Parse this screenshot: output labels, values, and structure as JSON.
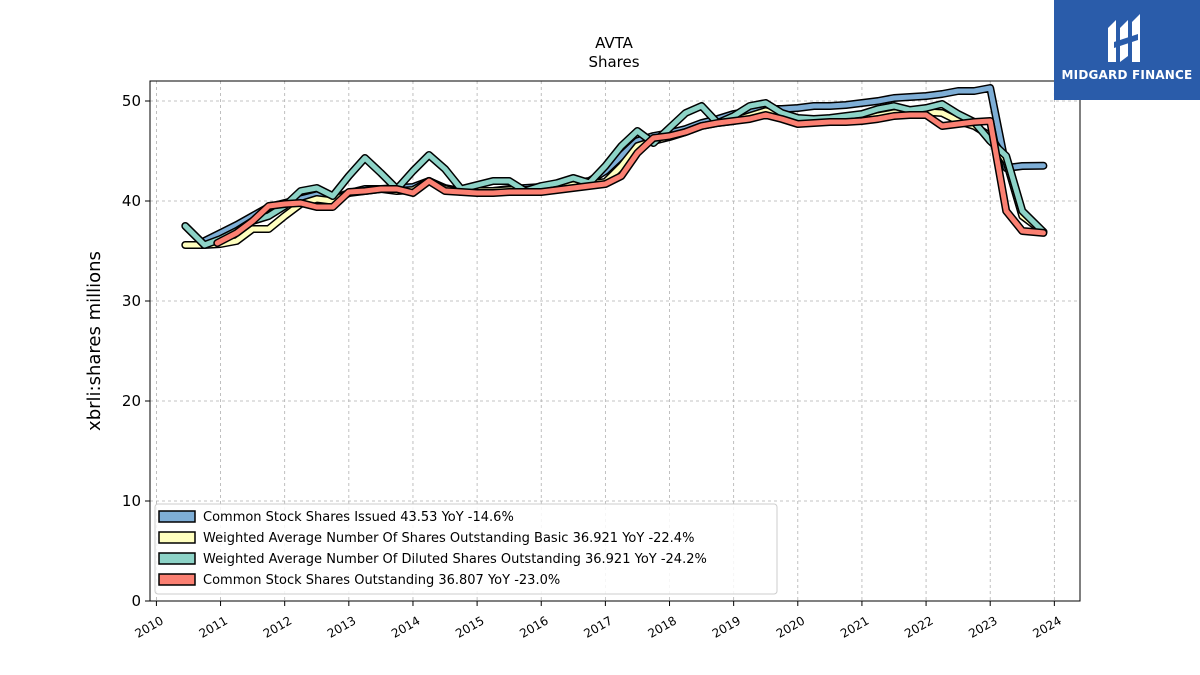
{
  "chart_data": {
    "type": "line",
    "title": "AVTA",
    "subtitle": "Shares",
    "ylabel": "xbrli:shares millions",
    "xlabel": "",
    "xlim": [
      2009.9,
      2024.4
    ],
    "ylim": [
      0,
      52
    ],
    "x_ticks": [
      "2010",
      "2011",
      "2012",
      "2013",
      "2014",
      "2015",
      "2016",
      "2017",
      "2018",
      "2019",
      "2020",
      "2021",
      "2022",
      "2023",
      "2024"
    ],
    "y_ticks": [
      "0",
      "10",
      "20",
      "30",
      "40",
      "50"
    ],
    "grid": true,
    "legend_position": "lower-left",
    "series": [
      {
        "name": "Common Stock Shares Issued",
        "legend_label": "Common Stock Shares Issued  43.53 YoY -14.6%",
        "color": "#7eaed6",
        "x": [
          2010.75,
          2011.0,
          2011.25,
          2011.5,
          2011.75,
          2012.0,
          2012.25,
          2012.5,
          2012.75,
          2013.0,
          2013.25,
          2013.5,
          2013.75,
          2014.0,
          2014.25,
          2014.5,
          2014.75,
          2015.0,
          2015.25,
          2015.5,
          2015.75,
          2016.0,
          2016.25,
          2016.5,
          2016.75,
          2017.0,
          2017.25,
          2017.5,
          2017.75,
          2018.0,
          2018.25,
          2018.5,
          2018.75,
          2019.0,
          2019.25,
          2019.5,
          2019.75,
          2020.0,
          2020.25,
          2020.5,
          2020.75,
          2021.0,
          2021.25,
          2021.5,
          2021.75,
          2022.0,
          2022.25,
          2022.5,
          2022.75,
          2023.0,
          2023.25,
          2023.5,
          2023.83
        ],
        "y": [
          36.0,
          36.8,
          37.6,
          38.5,
          39.4,
          39.8,
          40.2,
          40.6,
          40.2,
          40.8,
          41.2,
          41.2,
          41.3,
          41.4,
          42.0,
          41.3,
          41.0,
          41.0,
          41.0,
          41.2,
          41.3,
          41.4,
          41.6,
          41.8,
          42.0,
          43.0,
          44.5,
          46.0,
          46.5,
          46.8,
          47.2,
          47.8,
          48.2,
          48.7,
          49.0,
          49.2,
          49.2,
          49.3,
          49.5,
          49.5,
          49.6,
          49.8,
          50.0,
          50.3,
          50.4,
          50.5,
          50.7,
          51.0,
          51.0,
          51.3,
          43.3,
          43.5,
          43.53
        ]
      },
      {
        "name": "Weighted Average Number Of Shares Outstanding Basic",
        "legend_label": "Weighted Average Number Of Shares Outstanding Basic  36.921 YoY -22.4%",
        "color": "#ffffbf",
        "x": [
          2010.45,
          2010.75,
          2011.0,
          2011.25,
          2011.5,
          2011.75,
          2012.0,
          2012.25,
          2012.5,
          2012.75,
          2013.0,
          2013.25,
          2013.5,
          2013.75,
          2014.0,
          2014.25,
          2014.5,
          2014.75,
          2015.0,
          2015.25,
          2015.5,
          2015.75,
          2016.0,
          2016.25,
          2016.5,
          2016.75,
          2017.0,
          2017.25,
          2017.5,
          2017.75,
          2018.0,
          2018.25,
          2018.5,
          2018.75,
          2019.0,
          2019.25,
          2019.5,
          2019.75,
          2020.0,
          2020.25,
          2020.5,
          2020.75,
          2021.0,
          2021.25,
          2021.5,
          2021.75,
          2022.0,
          2022.25,
          2022.5,
          2022.75,
          2023.0,
          2023.25,
          2023.5,
          2023.83
        ],
        "y": [
          35.6,
          35.6,
          35.7,
          36.0,
          37.2,
          37.2,
          38.5,
          39.7,
          40.2,
          40.0,
          40.8,
          41.0,
          41.2,
          41.0,
          41.1,
          42.0,
          41.2,
          40.9,
          41.0,
          41.0,
          41.1,
          41.1,
          41.2,
          41.4,
          41.6,
          41.7,
          41.9,
          43.5,
          45.5,
          46.0,
          46.4,
          46.9,
          47.5,
          47.8,
          48.0,
          48.5,
          49.0,
          48.5,
          47.8,
          47.9,
          48.0,
          48.0,
          48.2,
          48.5,
          48.8,
          48.8,
          48.9,
          48.8,
          48.0,
          47.5,
          46.5,
          44.0,
          38.5,
          36.92
        ]
      },
      {
        "name": "Weighted Average Number Of Diluted Shares Outstanding",
        "legend_label": "Weighted Average Number Of Diluted Shares Outstanding  36.921 YoY -24.2%",
        "color": "#8dd3c7",
        "x": [
          2010.45,
          2010.75,
          2011.0,
          2011.25,
          2011.5,
          2011.75,
          2012.0,
          2012.25,
          2012.5,
          2012.75,
          2013.0,
          2013.25,
          2013.5,
          2013.75,
          2014.0,
          2014.25,
          2014.5,
          2014.75,
          2015.0,
          2015.25,
          2015.5,
          2015.75,
          2016.0,
          2016.25,
          2016.5,
          2016.75,
          2017.0,
          2017.25,
          2017.5,
          2017.75,
          2018.0,
          2018.25,
          2018.5,
          2018.75,
          2019.0,
          2019.25,
          2019.5,
          2019.75,
          2020.0,
          2020.25,
          2020.5,
          2020.75,
          2021.0,
          2021.25,
          2021.5,
          2021.75,
          2022.0,
          2022.25,
          2022.5,
          2022.75,
          2023.0,
          2023.25,
          2023.5,
          2023.83
        ],
        "y": [
          37.5,
          35.6,
          36.2,
          37.0,
          38.0,
          38.5,
          39.5,
          41.0,
          41.3,
          40.5,
          42.5,
          44.3,
          42.8,
          41.2,
          43.0,
          44.6,
          43.2,
          41.2,
          41.6,
          42.0,
          42.0,
          41.0,
          41.5,
          41.8,
          42.3,
          41.8,
          43.5,
          45.5,
          47.0,
          45.8,
          47.3,
          48.8,
          49.5,
          47.8,
          48.5,
          49.5,
          49.8,
          48.8,
          48.3,
          48.2,
          48.3,
          48.5,
          48.7,
          49.2,
          49.5,
          49.1,
          49.3,
          49.7,
          48.7,
          47.9,
          46.0,
          44.5,
          39.0,
          36.92
        ]
      },
      {
        "name": "Common Stock Shares Outstanding",
        "legend_label": "Common Stock Shares Outstanding  36.807 YoY -23.0%",
        "color": "#fb8072",
        "x": [
          2010.95,
          2011.25,
          2011.5,
          2011.75,
          2012.0,
          2012.25,
          2012.5,
          2012.75,
          2013.0,
          2013.25,
          2013.5,
          2013.75,
          2014.0,
          2014.25,
          2014.5,
          2014.75,
          2015.0,
          2015.25,
          2015.5,
          2015.75,
          2016.0,
          2016.25,
          2016.5,
          2016.75,
          2017.0,
          2017.25,
          2017.5,
          2017.75,
          2018.0,
          2018.25,
          2018.5,
          2018.75,
          2019.0,
          2019.25,
          2019.5,
          2019.75,
          2020.0,
          2020.25,
          2020.5,
          2020.75,
          2021.0,
          2021.25,
          2021.5,
          2021.75,
          2022.0,
          2022.25,
          2022.5,
          2022.75,
          2023.0,
          2023.25,
          2023.5,
          2023.83
        ],
        "y": [
          35.8,
          36.8,
          38.0,
          39.5,
          39.7,
          39.8,
          39.4,
          39.4,
          40.9,
          41.0,
          41.2,
          41.2,
          40.8,
          42.0,
          41.0,
          40.9,
          40.8,
          40.8,
          40.9,
          40.9,
          40.9,
          41.1,
          41.3,
          41.5,
          41.7,
          42.5,
          44.8,
          46.3,
          46.5,
          46.9,
          47.5,
          47.8,
          48.0,
          48.2,
          48.6,
          48.2,
          47.7,
          47.8,
          47.9,
          47.9,
          48.0,
          48.2,
          48.5,
          48.6,
          48.6,
          47.5,
          47.7,
          47.9,
          48.0,
          39.0,
          37.0,
          36.81
        ]
      }
    ]
  },
  "logo": {
    "text": "MIDGARD FINANCE",
    "background": "#2a5caa"
  }
}
